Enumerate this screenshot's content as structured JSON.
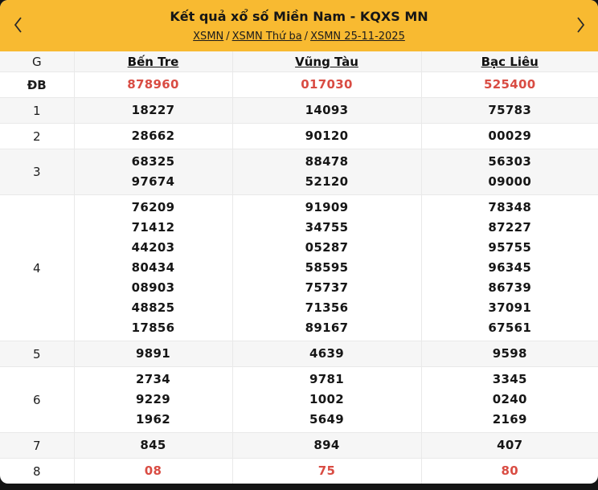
{
  "colors": {
    "header_bg": "#f8ba31",
    "highlight_red": "#d94c43",
    "stripe": "#f6f6f6",
    "border": "#e9e9e9",
    "page_bg": "#141414"
  },
  "header": {
    "title": "Kết quả xổ số Miền Nam - KQXS MN",
    "breadcrumb": [
      {
        "label": "XSMN"
      },
      {
        "label": "XSMN Thứ ba"
      },
      {
        "label": "XSMN 25-11-2025"
      }
    ],
    "separator": "/",
    "icons": {
      "prev": "chevron-left",
      "next": "chevron-right"
    }
  },
  "table": {
    "corner_label": "G",
    "provinces": [
      "Bến Tre",
      "Vũng Tàu",
      "Bạc Liêu"
    ],
    "rows": [
      {
        "label": "ĐB",
        "highlight": true,
        "cells": [
          [
            "878960"
          ],
          [
            "017030"
          ],
          [
            "525400"
          ]
        ]
      },
      {
        "label": "1",
        "highlight": false,
        "cells": [
          [
            "18227"
          ],
          [
            "14093"
          ],
          [
            "75783"
          ]
        ]
      },
      {
        "label": "2",
        "highlight": false,
        "cells": [
          [
            "28662"
          ],
          [
            "90120"
          ],
          [
            "00029"
          ]
        ]
      },
      {
        "label": "3",
        "highlight": false,
        "cells": [
          [
            "68325",
            "97674"
          ],
          [
            "88478",
            "52120"
          ],
          [
            "56303",
            "09000"
          ]
        ]
      },
      {
        "label": "4",
        "highlight": false,
        "cells": [
          [
            "76209",
            "71412",
            "44203",
            "80434",
            "08903",
            "48825",
            "17856"
          ],
          [
            "91909",
            "34755",
            "05287",
            "58595",
            "75737",
            "71356",
            "89167"
          ],
          [
            "78348",
            "87227",
            "95755",
            "96345",
            "86739",
            "37091",
            "67561"
          ]
        ]
      },
      {
        "label": "5",
        "highlight": false,
        "cells": [
          [
            "9891"
          ],
          [
            "4639"
          ],
          [
            "9598"
          ]
        ]
      },
      {
        "label": "6",
        "highlight": false,
        "cells": [
          [
            "2734",
            "9229",
            "1962"
          ],
          [
            "9781",
            "1002",
            "5649"
          ],
          [
            "3345",
            "0240",
            "2169"
          ]
        ]
      },
      {
        "label": "7",
        "highlight": false,
        "cells": [
          [
            "845"
          ],
          [
            "894"
          ],
          [
            "407"
          ]
        ]
      },
      {
        "label": "8",
        "highlight": true,
        "cells": [
          [
            "08"
          ],
          [
            "75"
          ],
          [
            "80"
          ]
        ]
      }
    ]
  }
}
